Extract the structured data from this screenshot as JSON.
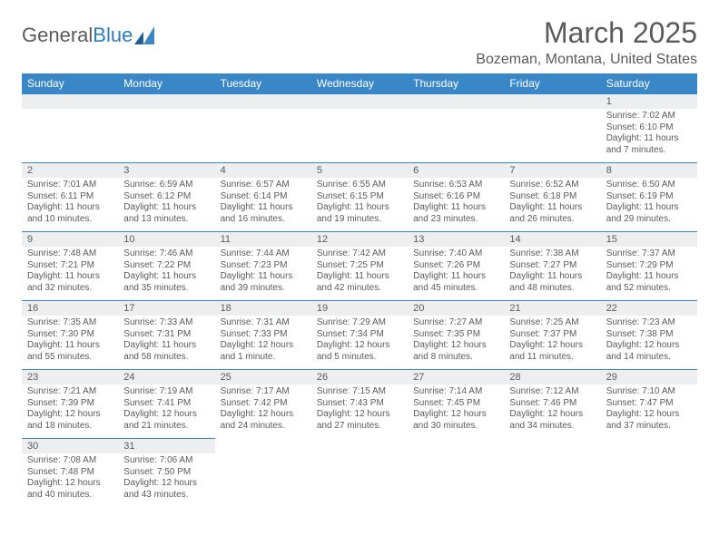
{
  "logo": {
    "text1": "General",
    "text2": "Blue"
  },
  "title": "March 2025",
  "location": "Bozeman, Montana, United States",
  "colors": {
    "header_bg": "#3a87c8",
    "header_text": "#ffffff",
    "border": "#3a87c8",
    "daynum_bg": "#eceeef",
    "text": "#5a5a5a",
    "page_bg": "#ffffff"
  },
  "weekdays": [
    "Sunday",
    "Monday",
    "Tuesday",
    "Wednesday",
    "Thursday",
    "Friday",
    "Saturday"
  ],
  "weeks": [
    [
      null,
      null,
      null,
      null,
      null,
      null,
      {
        "n": "1",
        "sunrise": "7:02 AM",
        "sunset": "6:10 PM",
        "daylight": "11 hours and 7 minutes."
      }
    ],
    [
      {
        "n": "2",
        "sunrise": "7:01 AM",
        "sunset": "6:11 PM",
        "daylight": "11 hours and 10 minutes."
      },
      {
        "n": "3",
        "sunrise": "6:59 AM",
        "sunset": "6:12 PM",
        "daylight": "11 hours and 13 minutes."
      },
      {
        "n": "4",
        "sunrise": "6:57 AM",
        "sunset": "6:14 PM",
        "daylight": "11 hours and 16 minutes."
      },
      {
        "n": "5",
        "sunrise": "6:55 AM",
        "sunset": "6:15 PM",
        "daylight": "11 hours and 19 minutes."
      },
      {
        "n": "6",
        "sunrise": "6:53 AM",
        "sunset": "6:16 PM",
        "daylight": "11 hours and 23 minutes."
      },
      {
        "n": "7",
        "sunrise": "6:52 AM",
        "sunset": "6:18 PM",
        "daylight": "11 hours and 26 minutes."
      },
      {
        "n": "8",
        "sunrise": "6:50 AM",
        "sunset": "6:19 PM",
        "daylight": "11 hours and 29 minutes."
      }
    ],
    [
      {
        "n": "9",
        "sunrise": "7:48 AM",
        "sunset": "7:21 PM",
        "daylight": "11 hours and 32 minutes."
      },
      {
        "n": "10",
        "sunrise": "7:46 AM",
        "sunset": "7:22 PM",
        "daylight": "11 hours and 35 minutes."
      },
      {
        "n": "11",
        "sunrise": "7:44 AM",
        "sunset": "7:23 PM",
        "daylight": "11 hours and 39 minutes."
      },
      {
        "n": "12",
        "sunrise": "7:42 AM",
        "sunset": "7:25 PM",
        "daylight": "11 hours and 42 minutes."
      },
      {
        "n": "13",
        "sunrise": "7:40 AM",
        "sunset": "7:26 PM",
        "daylight": "11 hours and 45 minutes."
      },
      {
        "n": "14",
        "sunrise": "7:38 AM",
        "sunset": "7:27 PM",
        "daylight": "11 hours and 48 minutes."
      },
      {
        "n": "15",
        "sunrise": "7:37 AM",
        "sunset": "7:29 PM",
        "daylight": "11 hours and 52 minutes."
      }
    ],
    [
      {
        "n": "16",
        "sunrise": "7:35 AM",
        "sunset": "7:30 PM",
        "daylight": "11 hours and 55 minutes."
      },
      {
        "n": "17",
        "sunrise": "7:33 AM",
        "sunset": "7:31 PM",
        "daylight": "11 hours and 58 minutes."
      },
      {
        "n": "18",
        "sunrise": "7:31 AM",
        "sunset": "7:33 PM",
        "daylight": "12 hours and 1 minute."
      },
      {
        "n": "19",
        "sunrise": "7:29 AM",
        "sunset": "7:34 PM",
        "daylight": "12 hours and 5 minutes."
      },
      {
        "n": "20",
        "sunrise": "7:27 AM",
        "sunset": "7:35 PM",
        "daylight": "12 hours and 8 minutes."
      },
      {
        "n": "21",
        "sunrise": "7:25 AM",
        "sunset": "7:37 PM",
        "daylight": "12 hours and 11 minutes."
      },
      {
        "n": "22",
        "sunrise": "7:23 AM",
        "sunset": "7:38 PM",
        "daylight": "12 hours and 14 minutes."
      }
    ],
    [
      {
        "n": "23",
        "sunrise": "7:21 AM",
        "sunset": "7:39 PM",
        "daylight": "12 hours and 18 minutes."
      },
      {
        "n": "24",
        "sunrise": "7:19 AM",
        "sunset": "7:41 PM",
        "daylight": "12 hours and 21 minutes."
      },
      {
        "n": "25",
        "sunrise": "7:17 AM",
        "sunset": "7:42 PM",
        "daylight": "12 hours and 24 minutes."
      },
      {
        "n": "26",
        "sunrise": "7:15 AM",
        "sunset": "7:43 PM",
        "daylight": "12 hours and 27 minutes."
      },
      {
        "n": "27",
        "sunrise": "7:14 AM",
        "sunset": "7:45 PM",
        "daylight": "12 hours and 30 minutes."
      },
      {
        "n": "28",
        "sunrise": "7:12 AM",
        "sunset": "7:46 PM",
        "daylight": "12 hours and 34 minutes."
      },
      {
        "n": "29",
        "sunrise": "7:10 AM",
        "sunset": "7:47 PM",
        "daylight": "12 hours and 37 minutes."
      }
    ],
    [
      {
        "n": "30",
        "sunrise": "7:08 AM",
        "sunset": "7:48 PM",
        "daylight": "12 hours and 40 minutes."
      },
      {
        "n": "31",
        "sunrise": "7:06 AM",
        "sunset": "7:50 PM",
        "daylight": "12 hours and 43 minutes."
      },
      null,
      null,
      null,
      null,
      null
    ]
  ]
}
